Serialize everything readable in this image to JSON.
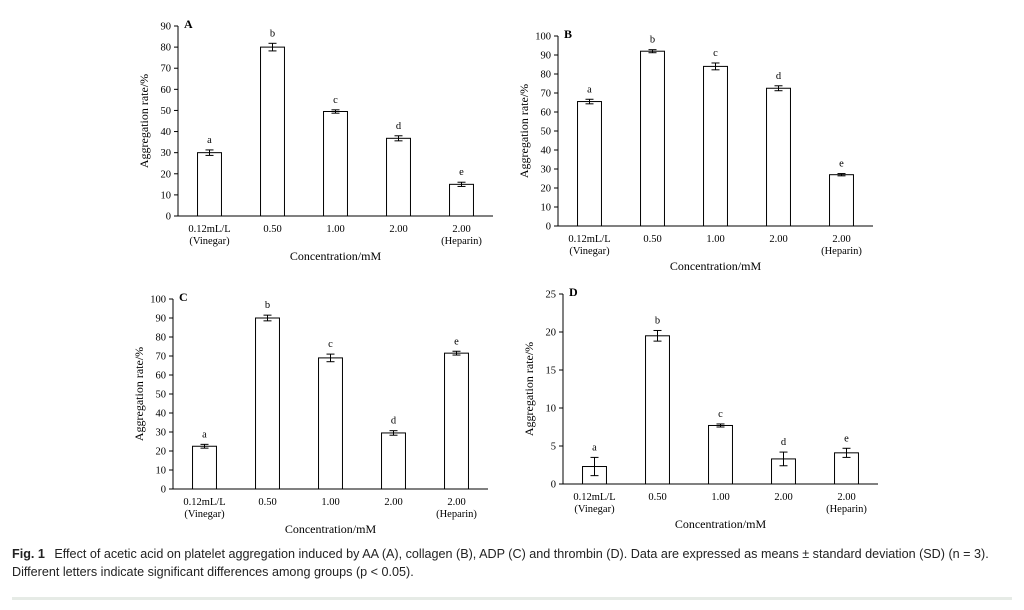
{
  "chart_data": [
    {
      "type": "bar",
      "panel_label": "A",
      "categories": [
        [
          "0.12mL/L",
          "(Vinegar)"
        ],
        [
          "0.50"
        ],
        [
          "1.00"
        ],
        [
          "2.00"
        ],
        [
          "2.00",
          "(Heparin)"
        ]
      ],
      "values": [
        30,
        80,
        49.5,
        36.8,
        15
      ],
      "errors": [
        1.3,
        1.8,
        0.8,
        1.2,
        1.0
      ],
      "significance_letters": [
        "a",
        "b",
        "c",
        "d",
        "e"
      ],
      "xlabel": "Concentration/mM",
      "ylabel": "Aggregation rate/%",
      "ylim": [
        0,
        90
      ],
      "yticks": [
        0,
        10,
        20,
        30,
        40,
        50,
        60,
        70,
        80,
        90
      ],
      "grid": false
    },
    {
      "type": "bar",
      "panel_label": "B",
      "categories": [
        [
          "0.12mL/L",
          "(Vinegar)"
        ],
        [
          "0.50"
        ],
        [
          "1.00"
        ],
        [
          "2.00"
        ],
        [
          "2.00",
          "(Heparin)"
        ]
      ],
      "values": [
        65.5,
        92,
        84,
        72.5,
        27
      ],
      "errors": [
        1.2,
        0.8,
        1.8,
        1.3,
        0.6
      ],
      "significance_letters": [
        "a",
        "b",
        "c",
        "d",
        "e"
      ],
      "xlabel": "Concentration/mM",
      "ylabel": "Aggregation rate/%",
      "ylim": [
        0,
        100
      ],
      "yticks": [
        0,
        10,
        20,
        30,
        40,
        50,
        60,
        70,
        80,
        90,
        100
      ],
      "grid": false
    },
    {
      "type": "bar",
      "panel_label": "C",
      "categories": [
        [
          "0.12mL/L",
          "(Vinegar)"
        ],
        [
          "0.50"
        ],
        [
          "1.00"
        ],
        [
          "2.00"
        ],
        [
          "2.00",
          "(Heparin)"
        ]
      ],
      "values": [
        22.5,
        90,
        69,
        29.5,
        71.5
      ],
      "errors": [
        1.0,
        1.5,
        2.0,
        1.2,
        1.0
      ],
      "significance_letters": [
        "a",
        "b",
        "c",
        "d",
        "e"
      ],
      "xlabel": "Concentration/mM",
      "ylabel": "Aggregation rate/%",
      "ylim": [
        0,
        100
      ],
      "yticks": [
        0,
        10,
        20,
        30,
        40,
        50,
        60,
        70,
        80,
        90,
        100
      ],
      "grid": false
    },
    {
      "type": "bar",
      "panel_label": "D",
      "categories": [
        [
          "0.12mL/L",
          "(Vinegar)"
        ],
        [
          "0.50"
        ],
        [
          "1.00"
        ],
        [
          "2.00"
        ],
        [
          "2.00",
          "(Heparin)"
        ]
      ],
      "values": [
        2.3,
        19.5,
        7.7,
        3.3,
        4.1
      ],
      "errors": [
        1.2,
        0.7,
        0.2,
        0.9,
        0.6
      ],
      "significance_letters": [
        "a",
        "b",
        "c",
        "d",
        "e"
      ],
      "xlabel": "Concentration/mM",
      "ylabel": "Aggregation rate/%",
      "ylim": [
        0,
        25
      ],
      "yticks": [
        0,
        5,
        10,
        15,
        20,
        25
      ],
      "grid": false
    }
  ],
  "caption": {
    "figure_number": "Fig. 1",
    "text": "Effect of acetic acid on platelet aggregation induced by AA (A), collagen (B), ADP (C) and thrombin (D). Data are expressed as means ± standard deviation (SD) (n = 3). Different letters indicate significant differences among groups (p < 0.05)."
  },
  "colors": {
    "bar_fill": "#ffffff",
    "bar_stroke": "#000000",
    "axis": "#000000",
    "caption_text": "#222222",
    "divider": "#e6ebe6"
  }
}
